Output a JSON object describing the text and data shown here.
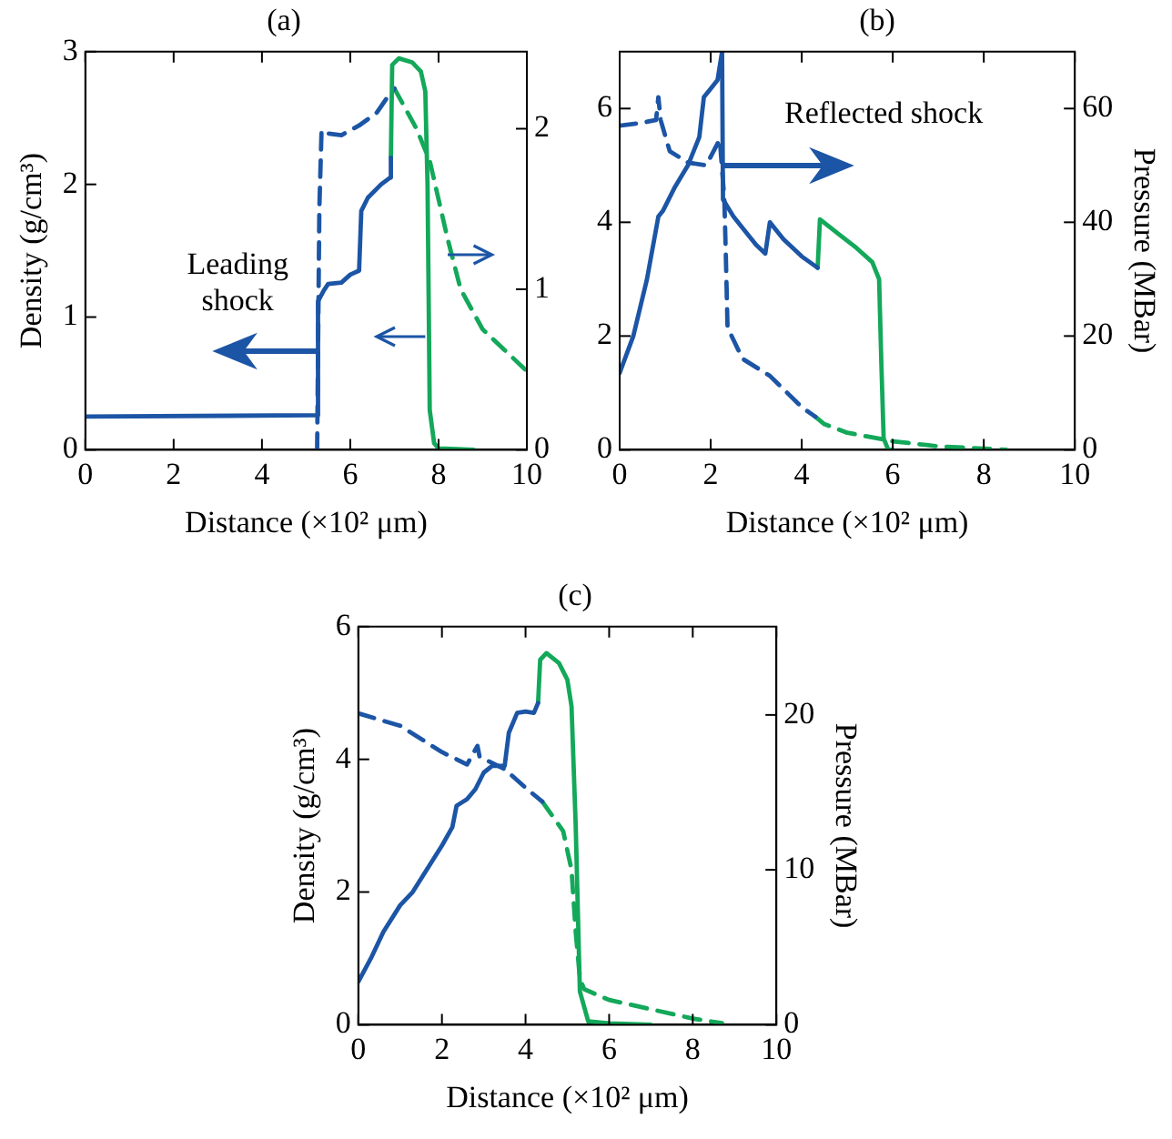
{
  "chart_data": [
    {
      "type": "line",
      "title": "(a)",
      "xlabel": "Distance (×10² μm)",
      "ylabel": "Density (g/cm³)",
      "xlim": [
        0,
        10
      ],
      "xticks": [
        0,
        2,
        4,
        6,
        8,
        10
      ],
      "ylim": [
        0,
        3
      ],
      "yticks": [
        0,
        1,
        2,
        3
      ],
      "y2lim": [
        0,
        2.48
      ],
      "y2ticks": [
        0,
        1,
        2
      ],
      "marker": "none",
      "annotations": [
        {
          "text": "Leading shock",
          "x": 5.26,
          "y": 0.74
        }
      ],
      "series": [
        {
          "color": "#1c55a5",
          "line_style": "solid",
          "x": [
            0,
            5.25,
            5.27,
            5.4,
            5.5,
            5.8,
            6.0,
            6.2,
            6.25,
            6.4,
            6.7,
            6.9,
            6.92
          ],
          "values": [
            0.25,
            0.26,
            1.12,
            1.2,
            1.25,
            1.26,
            1.32,
            1.35,
            1.8,
            1.9,
            2.0,
            2.05,
            2.2
          ]
        },
        {
          "color": "#13a85a",
          "line_style": "solid",
          "x": [
            6.92,
            6.95,
            7.1,
            7.4,
            7.6,
            7.7,
            7.75,
            7.78,
            7.8,
            7.9,
            8.0,
            8.8
          ],
          "values": [
            2.2,
            2.9,
            2.95,
            2.92,
            2.85,
            2.7,
            2.0,
            1.0,
            0.3,
            0.05,
            0.01,
            0
          ]
        },
        {
          "color": "#1c55a5",
          "line_style": "dashed",
          "axis": "y2",
          "x": [
            5.25,
            5.3,
            5.35,
            5.5,
            5.8,
            6.2,
            6.6,
            6.9,
            7.0
          ],
          "values": [
            0,
            1.5,
            1.99,
            1.97,
            1.96,
            2.02,
            2.1,
            2.22,
            2.25
          ]
        },
        {
          "color": "#13a85a",
          "line_style": "dashed",
          "axis": "y2",
          "x": [
            7.0,
            7.5,
            7.8,
            8.2,
            8.5,
            9.0,
            9.5,
            10
          ],
          "values": [
            2.25,
            2.0,
            1.8,
            1.32,
            1.0,
            0.75,
            0.62,
            0.49
          ]
        }
      ]
    },
    {
      "type": "line",
      "title": "(b)",
      "xlabel": "Distance (×10² μm)",
      "y2label": "Pressure (MBar)",
      "xlim": [
        0,
        10
      ],
      "xticks": [
        0,
        2,
        4,
        6,
        8,
        10
      ],
      "ylim": [
        0,
        7
      ],
      "yticks": [
        0,
        2,
        4,
        6
      ],
      "y2lim": [
        0,
        70
      ],
      "y2ticks": [
        0,
        20,
        40,
        60
      ],
      "marker": "none",
      "annotations": [
        {
          "text": "Reflected shock",
          "x": 2.26,
          "y": 5.0
        }
      ],
      "series": [
        {
          "color": "#1c55a5",
          "line_style": "solid",
          "x": [
            0,
            0.3,
            0.6,
            0.85,
            0.95,
            1.2,
            1.5,
            1.75,
            1.85,
            2.0,
            2.15,
            2.25,
            2.27,
            2.5,
            3.0,
            3.2,
            3.3,
            3.6,
            4.0,
            4.35
          ],
          "values": [
            1.35,
            2.0,
            3.0,
            4.1,
            4.2,
            4.6,
            5.0,
            5.5,
            6.2,
            6.35,
            6.5,
            7.0,
            4.4,
            4.1,
            3.6,
            3.45,
            4.0,
            3.7,
            3.4,
            3.2
          ]
        },
        {
          "color": "#13a85a",
          "line_style": "solid",
          "x": [
            4.35,
            4.4,
            4.8,
            5.2,
            5.55,
            5.7,
            5.75,
            5.8,
            5.9,
            6.0
          ],
          "values": [
            3.2,
            4.05,
            3.8,
            3.55,
            3.3,
            3.0,
            1.5,
            0.2,
            0,
            0
          ]
        },
        {
          "color": "#1c55a5",
          "line_style": "dashed",
          "axis": "y2",
          "x": [
            0,
            0.5,
            0.8,
            0.85,
            0.9,
            1.1,
            1.5,
            1.9,
            2.2,
            2.3,
            2.33,
            2.37,
            2.7,
            3.3,
            4.0,
            4.3
          ],
          "values": [
            57,
            57.5,
            58,
            62,
            58,
            52.5,
            50.5,
            50,
            54.6,
            44,
            35,
            21.5,
            16,
            13,
            7.5,
            5.8
          ]
        },
        {
          "color": "#13a85a",
          "line_style": "dashed",
          "axis": "y2",
          "x": [
            4.3,
            4.5,
            5,
            6,
            7,
            8,
            8.5
          ],
          "values": [
            5.8,
            4.5,
            3,
            1.5,
            0.6,
            0.2,
            0
          ]
        }
      ]
    },
    {
      "type": "line",
      "title": "(c)",
      "xlabel": "Distance (×10² μm)",
      "ylabel": "Density (g/cm³)",
      "y2label": "Pressure (MBar)",
      "xlim": [
        0,
        10
      ],
      "xticks": [
        0,
        2,
        4,
        6,
        8,
        10
      ],
      "ylim": [
        0,
        6
      ],
      "yticks": [
        0,
        2,
        4,
        6
      ],
      "y2lim": [
        0,
        25.7
      ],
      "y2ticks": [
        0,
        10,
        20
      ],
      "marker": "none",
      "series": [
        {
          "color": "#1c55a5",
          "line_style": "solid",
          "x": [
            0,
            0.3,
            0.6,
            1.0,
            1.3,
            2.0,
            2.25,
            2.35,
            2.6,
            2.8,
            3.0,
            3.2,
            3.5,
            3.6,
            3.8,
            4.0,
            4.2,
            4.3
          ],
          "values": [
            0.65,
            1.0,
            1.4,
            1.8,
            2.0,
            2.7,
            2.98,
            3.3,
            3.4,
            3.55,
            3.8,
            3.9,
            3.9,
            4.4,
            4.7,
            4.72,
            4.7,
            4.85
          ]
        },
        {
          "color": "#13a85a",
          "line_style": "solid",
          "x": [
            4.3,
            4.35,
            4.5,
            4.8,
            5.0,
            5.1,
            5.2,
            5.3,
            5.5,
            6,
            7
          ],
          "values": [
            4.85,
            5.5,
            5.6,
            5.45,
            5.2,
            4.8,
            3.0,
            0.5,
            0.05,
            0.02,
            0
          ]
        },
        {
          "color": "#1c55a5",
          "line_style": "dashed",
          "axis": "y2",
          "x": [
            0,
            1,
            2,
            2.6,
            2.85,
            2.9,
            3.5,
            4,
            4.4
          ],
          "values": [
            20.1,
            19.3,
            17.6,
            16.8,
            18.0,
            17.3,
            16.5,
            15.3,
            14.4
          ]
        },
        {
          "color": "#13a85a",
          "line_style": "dashed",
          "axis": "y2",
          "x": [
            4.4,
            4.9,
            5.1,
            5.2,
            5.3,
            5.4,
            6,
            7,
            8,
            8.7
          ],
          "values": [
            14.4,
            12.5,
            10,
            6,
            3,
            2.3,
            1.6,
            1.0,
            0.4,
            0.1
          ]
        }
      ]
    }
  ]
}
